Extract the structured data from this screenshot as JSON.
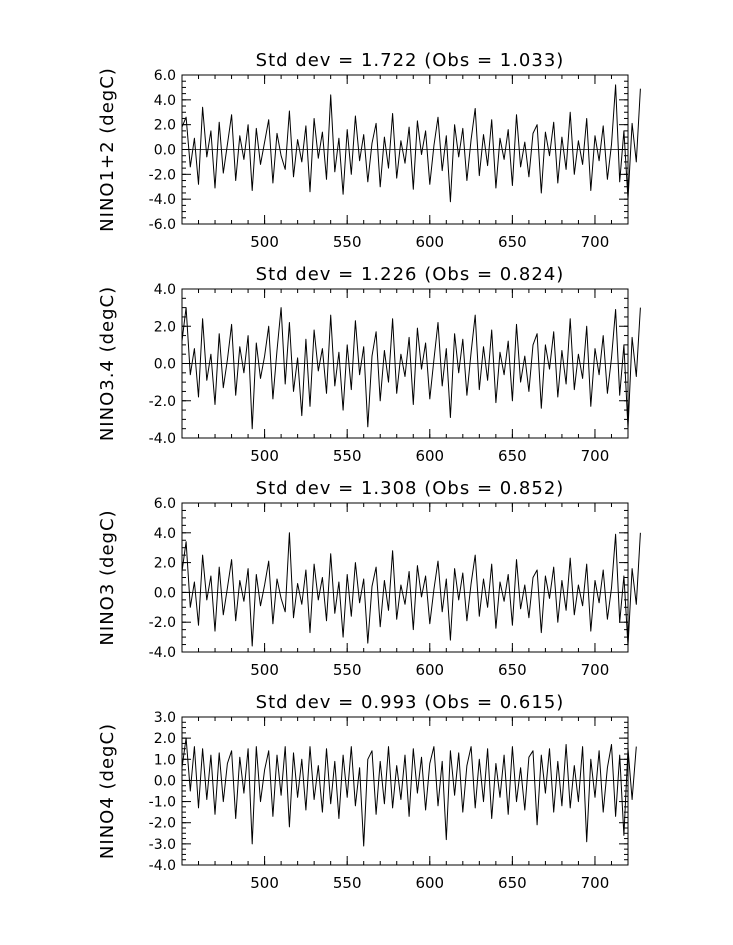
{
  "chart_data": [
    {
      "type": "line",
      "title": "Std dev = 1.722 (Obs = 1.033)",
      "ylabel": "NINO1+2 (degC)",
      "xlabel": "",
      "xlim": [
        450,
        720
      ],
      "ylim": [
        -6.0,
        6.0
      ],
      "yticks": [
        -6.0,
        -4.0,
        -2.0,
        0.0,
        2.0,
        4.0,
        6.0
      ],
      "ytick_labels": [
        "-6.0",
        "-4.0",
        "-2.0",
        "0.0",
        "2.0",
        "4.0",
        "6.0"
      ],
      "xticks": [
        500,
        550,
        600,
        650,
        700
      ],
      "xtick_labels": [
        "500",
        "550",
        "600",
        "650",
        "700"
      ],
      "zero_line": true,
      "series": [
        {
          "x_start": 450,
          "x_step": 2.5,
          "values": [
            1.8,
            2.6,
            -1.4,
            0.9,
            -2.8,
            3.4,
            -0.6,
            1.5,
            -3.1,
            2.2,
            -1.9,
            0.4,
            2.8,
            -2.5,
            1.1,
            -0.8,
            2.0,
            -3.3,
            1.7,
            -1.2,
            0.6,
            2.4,
            -2.7,
            1.3,
            -0.5,
            -1.6,
            3.1,
            -2.2,
            0.8,
            -1.0,
            1.9,
            -3.4,
            2.5,
            -0.7,
            1.4,
            -2.4,
            4.4,
            -1.8,
            0.9,
            -3.6,
            1.6,
            -2.0,
            2.7,
            -0.9,
            1.2,
            -2.6,
            0.5,
            2.1,
            -3.0,
            1.0,
            -1.5,
            2.9,
            -2.3,
            0.7,
            -1.1,
            1.8,
            -3.2,
            2.3,
            -0.4,
            1.5,
            -2.8,
            0.3,
            2.6,
            -1.7,
            1.1,
            -4.2,
            2.0,
            -0.6,
            1.7,
            -2.5,
            0.8,
            3.3,
            -2.1,
            1.2,
            -1.3,
            2.4,
            -3.1,
            0.9,
            -0.8,
            1.6,
            -2.9,
            2.8,
            -1.4,
            0.6,
            -2.2,
            1.3,
            2.0,
            -3.5,
            1.4,
            -0.5,
            2.2,
            -2.7,
            1.0,
            -1.6,
            3.0,
            -2.0,
            0.7,
            -1.2,
            2.5,
            -3.3,
            1.1,
            -0.9,
            1.9,
            -2.4,
            0.4,
            5.2,
            -2.6,
            1.5,
            -4.0,
            2.1,
            -1.0,
            4.9
          ]
        }
      ]
    },
    {
      "type": "line",
      "title": "Std dev = 1.226 (Obs = 0.824)",
      "ylabel": "NINO3.4 (degC)",
      "xlabel": "",
      "xlim": [
        450,
        720
      ],
      "ylim": [
        -4.0,
        4.0
      ],
      "yticks": [
        -4.0,
        -2.0,
        0.0,
        2.0,
        4.0
      ],
      "ytick_labels": [
        "-4.0",
        "-2.0",
        "0.0",
        "2.0",
        "4.0"
      ],
      "xticks": [
        500,
        550,
        600,
        650,
        700
      ],
      "xtick_labels": [
        "500",
        "550",
        "600",
        "650",
        "700"
      ],
      "zero_line": true,
      "series": [
        {
          "x_start": 450,
          "x_step": 2.5,
          "values": [
            1.2,
            3.0,
            -0.6,
            0.8,
            -1.8,
            2.4,
            -0.9,
            0.5,
            -2.2,
            1.6,
            -1.3,
            0.2,
            2.1,
            -1.7,
            0.9,
            -0.5,
            1.5,
            -3.5,
            1.1,
            -0.8,
            0.4,
            2.0,
            -1.9,
            0.7,
            3.0,
            -1.1,
            2.2,
            -1.5,
            0.3,
            -2.8,
            1.3,
            -2.3,
            1.8,
            -0.4,
            0.8,
            -1.6,
            2.6,
            -1.2,
            0.6,
            -2.5,
            1.0,
            -1.4,
            2.3,
            -0.6,
            0.9,
            -3.4,
            0.4,
            1.7,
            -2.0,
            0.7,
            -1.0,
            2.4,
            -1.6,
            0.5,
            -0.7,
            1.4,
            -2.2,
            1.9,
            -0.3,
            1.1,
            -1.9,
            0.2,
            2.2,
            -1.2,
            0.8,
            -2.9,
            1.6,
            -0.5,
            1.3,
            -1.7,
            0.6,
            2.6,
            -1.4,
            0.9,
            -0.9,
            1.8,
            -2.1,
            0.6,
            -0.6,
            1.2,
            -2.0,
            2.1,
            -1.0,
            0.4,
            -1.5,
            1.0,
            1.6,
            -2.4,
            1.0,
            -0.3,
            1.7,
            -1.8,
            0.7,
            -1.1,
            2.4,
            -1.4,
            0.5,
            -0.8,
            2.0,
            -2.3,
            0.8,
            -0.6,
            1.5,
            -1.6,
            0.3,
            2.9,
            -1.7,
            1.0,
            -3.5,
            1.4,
            -0.7,
            3.0
          ]
        }
      ]
    },
    {
      "type": "line",
      "title": "Std dev = 1.308 (Obs = 0.852)",
      "ylabel": "NINO3 (degC)",
      "xlabel": "",
      "xlim": [
        450,
        720
      ],
      "ylim": [
        -4.0,
        6.0
      ],
      "yticks": [
        -4.0,
        -2.0,
        0.0,
        2.0,
        4.0,
        6.0
      ],
      "ytick_labels": [
        "-4.0",
        "-2.0",
        "0.0",
        "2.0",
        "4.0",
        "6.0"
      ],
      "xticks": [
        500,
        550,
        600,
        650,
        700
      ],
      "xtick_labels": [
        "500",
        "550",
        "600",
        "650",
        "700"
      ],
      "zero_line": true,
      "series": [
        {
          "x_start": 450,
          "x_step": 2.5,
          "values": [
            1.4,
            3.4,
            -1.0,
            0.7,
            -2.2,
            2.5,
            -0.5,
            1.1,
            -2.6,
            1.7,
            -1.5,
            0.3,
            2.2,
            -1.9,
            0.8,
            -0.6,
            1.6,
            -3.6,
            1.2,
            -0.9,
            0.5,
            2.1,
            -2.1,
            0.9,
            -0.4,
            -1.3,
            4.0,
            -1.7,
            0.6,
            -0.8,
            1.5,
            -2.7,
            1.9,
            -0.5,
            1.0,
            -1.9,
            2.6,
            -1.4,
            0.7,
            -3.0,
            1.2,
            -1.6,
            2.0,
            -0.7,
            0.9,
            -3.4,
            0.4,
            1.7,
            -2.3,
            0.8,
            -1.2,
            2.8,
            -1.8,
            0.5,
            -0.8,
            1.4,
            -2.5,
            1.8,
            -0.3,
            1.1,
            -2.1,
            0.2,
            2.1,
            -1.3,
            0.9,
            -3.2,
            1.6,
            -0.5,
            1.3,
            -1.9,
            0.6,
            2.5,
            -1.6,
            0.9,
            -1.0,
            1.9,
            -2.4,
            0.7,
            -0.6,
            1.2,
            -2.2,
            2.2,
            -1.1,
            0.5,
            -1.7,
            1.0,
            1.5,
            -2.7,
            1.1,
            -0.4,
            1.7,
            -2.0,
            0.8,
            -1.2,
            2.3,
            -1.5,
            0.5,
            -0.9,
            1.9,
            -2.6,
            0.8,
            -0.7,
            1.5,
            -1.8,
            0.3,
            3.9,
            -2.0,
            1.1,
            -3.6,
            1.6,
            -0.8,
            4.0
          ]
        }
      ]
    },
    {
      "type": "line",
      "title": "Std dev = 0.993 (Obs = 0.615)",
      "ylabel": "NINO4 (degC)",
      "xlabel": "",
      "xlim": [
        450,
        720
      ],
      "ylim": [
        -4.0,
        3.0
      ],
      "yticks": [
        -4.0,
        -3.0,
        -2.0,
        -1.0,
        0.0,
        1.0,
        2.0,
        3.0
      ],
      "ytick_labels": [
        "-4.0",
        "-3.0",
        "-2.0",
        "-1.0",
        "0.0",
        "1.0",
        "2.0",
        "3.0"
      ],
      "xticks": [
        500,
        550,
        600,
        650,
        700
      ],
      "xtick_labels": [
        "500",
        "550",
        "600",
        "650",
        "700"
      ],
      "zero_line": true,
      "series": [
        {
          "x_start": 450,
          "x_step": 2.5,
          "values": [
            0.6,
            2.0,
            -0.5,
            1.6,
            -1.3,
            1.5,
            -0.9,
            1.2,
            -1.6,
            1.3,
            -1.0,
            0.8,
            1.4,
            -1.8,
            1.1,
            -0.6,
            1.5,
            -3.0,
            1.6,
            -1.0,
            0.5,
            1.4,
            -1.7,
            1.2,
            -0.7,
            1.6,
            -2.2,
            1.3,
            -0.8,
            1.0,
            -1.4,
            1.6,
            -0.9,
            0.7,
            -1.5,
            1.5,
            -1.1,
            0.9,
            -1.8,
            1.2,
            -0.8,
            1.6,
            -1.2,
            0.6,
            -3.1,
            1.0,
            1.4,
            -1.6,
            0.9,
            -1.1,
            1.6,
            -1.3,
            0.7,
            -0.9,
            1.2,
            -1.7,
            1.5,
            -0.6,
            1.1,
            -1.4,
            0.8,
            1.6,
            -1.2,
            0.9,
            -2.8,
            1.4,
            -0.7,
            1.3,
            -1.5,
            0.7,
            1.6,
            -1.3,
            1.0,
            -1.0,
            1.5,
            -1.8,
            0.8,
            -0.8,
            1.2,
            -1.6,
            1.6,
            -1.0,
            0.6,
            -1.4,
            1.1,
            1.4,
            -2.1,
            1.2,
            -0.6,
            1.5,
            -1.5,
            0.9,
            -1.2,
            1.7,
            -1.3,
            0.7,
            -1.0,
            1.6,
            -2.9,
            1.0,
            -0.8,
            1.4,
            -1.5,
            0.6,
            1.7,
            -1.7,
            1.2,
            -2.6,
            1.5,
            -0.9,
            1.6
          ]
        }
      ]
    }
  ]
}
